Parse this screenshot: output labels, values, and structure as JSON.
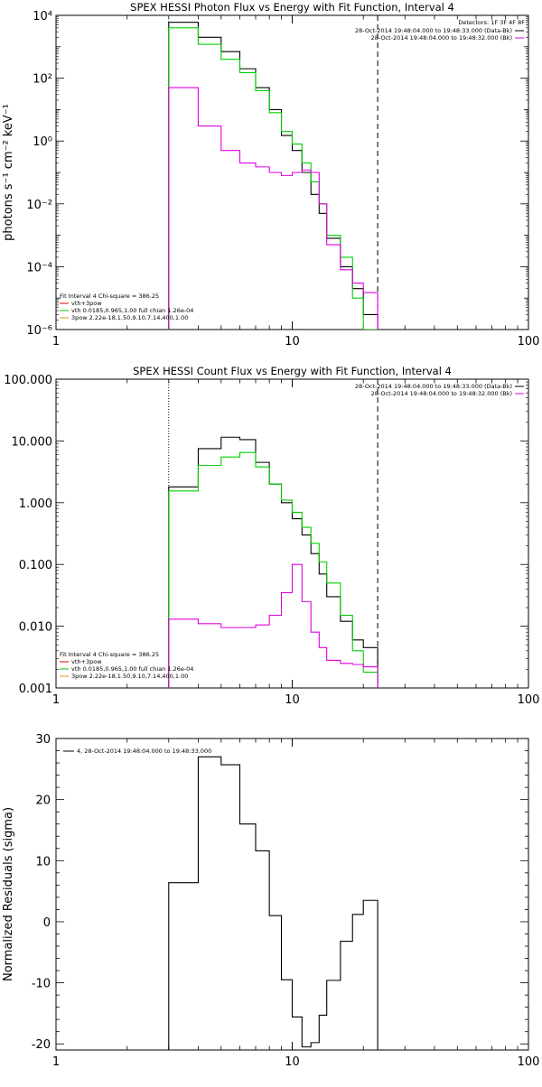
{
  "chart_data": [
    {
      "type": "line",
      "title": "SPEX HESSI Photon Flux vs Energy with Fit Function, Interval 4",
      "xlabel": "",
      "ylabel": "photons s⁻¹ cm⁻² keV⁻¹",
      "x_scale": "log",
      "y_scale": "log",
      "xlim": [
        1,
        100
      ],
      "ylim": [
        1e-06,
        10000.0
      ],
      "x_ticks": [
        "1",
        "10",
        "100"
      ],
      "y_ticks": [
        "10⁴",
        "10²",
        "10⁰",
        "10⁻²",
        "10⁻⁴",
        "10⁻⁶"
      ],
      "vlines": [
        {
          "x": 3,
          "style": "dotted",
          "color": "#00c000"
        },
        {
          "x": 23,
          "style": "dashed",
          "color": "#000000"
        }
      ],
      "edges": [
        3,
        4,
        5,
        6,
        7,
        8,
        9,
        10,
        11,
        12,
        13,
        14,
        16,
        18,
        20,
        23
      ],
      "series": [
        {
          "color": "#000000",
          "values": [
            6000,
            2000,
            700,
            200,
            50,
            10,
            1.5,
            0.5,
            0.1,
            0.02,
            0.005,
            0.0008,
            0.0001,
            2e-05,
            3e-06
          ]
        },
        {
          "color": "#00d000",
          "values": [
            4000,
            1200,
            400,
            150,
            40,
            8,
            2,
            0.8,
            0.2,
            0.05,
            0.01,
            0.001,
            0.0002,
            1e-05,
            1e-06
          ]
        },
        {
          "color": "#e000e0",
          "values": [
            50,
            3,
            0.5,
            0.2,
            0.15,
            0.1,
            0.08,
            0.1,
            0.12,
            0.1,
            0.01,
            0.0005,
            8e-05,
            3e-05,
            1.5e-05
          ]
        }
      ],
      "legend_right": {
        "header": "Detectors: 1F 3F 4F 8F",
        "entries": [
          {
            "text": "28-Oct-2014 19:48:04.000 to 19:48:33.000 (Data-Bk)",
            "color": "#000000"
          },
          {
            "text": "28-Oct-2014 19:48:04.000 to 19:48:32.000 (Bk)",
            "color": "#e000e0"
          }
        ]
      },
      "legend_left": {
        "header": "Fit Interval 4   Chi-square = 386.25",
        "entries": [
          {
            "text": "vth+3pow",
            "color": "#e00000"
          },
          {
            "text": "vth 0.0185,0.965,1.00  full chian 1.26e-04",
            "color": "#00c000"
          },
          {
            "text": "3pow 2.22e-18,1.50,9.10,7.14,400,1.00",
            "color": "#d0a000"
          }
        ]
      }
    },
    {
      "type": "line",
      "title": "SPEX HESSI Count Flux vs Energy with Fit Function, Interval 4",
      "xlabel": "",
      "ylabel": "",
      "x_scale": "log",
      "y_scale": "log",
      "xlim": [
        1,
        100
      ],
      "ylim": [
        0.001,
        100
      ],
      "x_ticks": [
        "1",
        "10",
        "100"
      ],
      "y_ticks": [
        "100.000",
        "10.000",
        "1.000",
        "0.100",
        "0.010",
        "0.001"
      ],
      "vlines": [
        {
          "x": 3,
          "style": "dotted",
          "color": "#000000"
        },
        {
          "x": 23,
          "style": "dashed",
          "color": "#000000"
        }
      ],
      "edges": [
        3,
        4,
        5,
        6,
        7,
        8,
        9,
        10,
        11,
        12,
        13,
        14,
        16,
        18,
        20,
        23
      ],
      "series": [
        {
          "color": "#000000",
          "values": [
            1.8,
            7.5,
            11.5,
            10.5,
            4.5,
            2.0,
            1.0,
            0.55,
            0.3,
            0.15,
            0.07,
            0.03,
            0.012,
            0.006,
            0.0045
          ]
        },
        {
          "color": "#00d000",
          "values": [
            1.55,
            4.0,
            5.5,
            6.5,
            3.8,
            2.0,
            1.1,
            0.7,
            0.4,
            0.22,
            0.11,
            0.05,
            0.015,
            0.004,
            0.0018
          ]
        },
        {
          "color": "#e000e0",
          "values": [
            0.013,
            0.011,
            0.0095,
            0.0095,
            0.0105,
            0.015,
            0.035,
            0.1,
            0.025,
            0.008,
            0.0045,
            0.0028,
            0.0025,
            0.0024,
            0.0022
          ]
        }
      ],
      "legend_right": {
        "header": "",
        "entries": [
          {
            "text": "28-Oct-2014 19:48:04.000 to 19:48:33.000 (Data-Bk)",
            "color": "#000000"
          },
          {
            "text": "28-Oct-2014 19:48:04.000 to 19:48:32.000 (Bk)",
            "color": "#e000e0"
          }
        ]
      },
      "legend_left": {
        "header": "Fit Interval 4   Chi-square = 386.25",
        "entries": [
          {
            "text": "vth+3pow",
            "color": "#e00000"
          },
          {
            "text": "vth 0.0185,0.965,1.00  full chian 1.26e-04",
            "color": "#00c000"
          },
          {
            "text": "3pow 2.22e-18,1.50,9.10,7.14,400,1.00",
            "color": "#d0a000"
          }
        ]
      }
    },
    {
      "type": "line",
      "title": "",
      "xlabel": "",
      "ylabel": "Normalized Residuals (sigma)",
      "x_scale": "log",
      "y_scale": "linear",
      "xlim": [
        1,
        100
      ],
      "ylim": [
        -21,
        30
      ],
      "x_ticks": [
        "1",
        "10",
        "100"
      ],
      "y_ticks": [
        "30",
        "20",
        "10",
        "0",
        "-10",
        "-20"
      ],
      "edges": [
        3,
        4,
        5,
        6,
        7,
        8,
        9,
        10,
        11,
        12,
        13,
        14,
        16,
        18,
        20,
        23
      ],
      "series": [
        {
          "color": "#000000",
          "values": [
            6.4,
            27.0,
            25.7,
            16.0,
            11.6,
            1.0,
            -9.5,
            -15.6,
            -20.5,
            -19.8,
            -15.3,
            -9.6,
            -3.2,
            1.2,
            3.5
          ]
        }
      ],
      "legend_right": {
        "header": "",
        "entries": []
      },
      "legend_left": {
        "header": "",
        "entries": [
          {
            "text": "4, 28-Oct-2014 19:48:04.000 to 19:48:33.000",
            "color": "#000000"
          }
        ]
      }
    }
  ]
}
